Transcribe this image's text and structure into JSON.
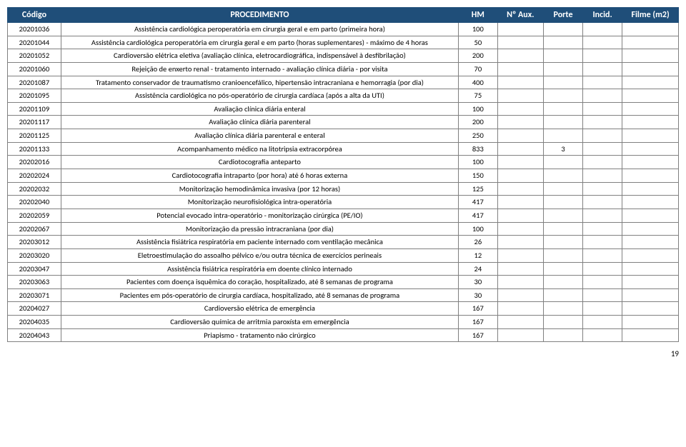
{
  "header": {
    "codigo": "Código",
    "procedimento": "PROCEDIMENTO",
    "hm": "HM",
    "naux": "Nº Aux.",
    "porte": "Porte",
    "incid": "Incid.",
    "filme": "Filme (m2)"
  },
  "rows": [
    {
      "codigo": "20201036",
      "proc": "Assistência cardiológica peroperatória em cirurgia geral e em parto (primeira hora)",
      "hm": "100",
      "naux": "",
      "porte": "",
      "incid": "",
      "filme": ""
    },
    {
      "codigo": "20201044",
      "proc": "Assistência cardiológica peroperatória em cirurgia geral e em parto (horas suplementares) - máximo de 4 horas",
      "hm": "50",
      "naux": "",
      "porte": "",
      "incid": "",
      "filme": ""
    },
    {
      "codigo": "20201052",
      "proc": "Cardioversão elétrica eletiva (avaliação clínica, eletrocardiográfica, indispensável à desfibrilação)",
      "hm": "200",
      "naux": "",
      "porte": "",
      "incid": "",
      "filme": ""
    },
    {
      "codigo": "20201060",
      "proc": "Rejeição de enxerto renal - tratamento internado - avaliação clínica diária - por visita",
      "hm": "70",
      "naux": "",
      "porte": "",
      "incid": "",
      "filme": ""
    },
    {
      "codigo": "20201087",
      "proc": "Tratamento conservador de traumatismo cranioencefálico, hipertensão intracraniana e hemorragia (por dia)",
      "hm": "400",
      "naux": "",
      "porte": "",
      "incid": "",
      "filme": ""
    },
    {
      "codigo": "20201095",
      "proc": "Assistência cardiológica no pós-operatório de cirurgia cardíaca (após a alta da UTI)",
      "hm": "75",
      "naux": "",
      "porte": "",
      "incid": "",
      "filme": ""
    },
    {
      "codigo": "20201109",
      "proc": "Avaliação clínica diária enteral",
      "hm": "100",
      "naux": "",
      "porte": "",
      "incid": "",
      "filme": ""
    },
    {
      "codigo": "20201117",
      "proc": "Avaliação clínica diária parenteral",
      "hm": "200",
      "naux": "",
      "porte": "",
      "incid": "",
      "filme": ""
    },
    {
      "codigo": "20201125",
      "proc": "Avaliação clínica diária parenteral e enteral",
      "hm": "250",
      "naux": "",
      "porte": "",
      "incid": "",
      "filme": ""
    },
    {
      "codigo": "20201133",
      "proc": "Acompanhamento médico na litotripsia extracorpórea",
      "hm": "833",
      "naux": "",
      "porte": "3",
      "incid": "",
      "filme": ""
    },
    {
      "codigo": "20202016",
      "proc": "Cardiotocografia anteparto",
      "hm": "100",
      "naux": "",
      "porte": "",
      "incid": "",
      "filme": ""
    },
    {
      "codigo": "20202024",
      "proc": "Cardiotocografia intraparto (por hora) até 6 horas externa",
      "hm": "150",
      "naux": "",
      "porte": "",
      "incid": "",
      "filme": ""
    },
    {
      "codigo": "20202032",
      "proc": "Monitorização hemodinâmica invasiva (por 12 horas)",
      "hm": "125",
      "naux": "",
      "porte": "",
      "incid": "",
      "filme": ""
    },
    {
      "codigo": "20202040",
      "proc": "Monitorização neurofisiológica intra-operatória",
      "hm": "417",
      "naux": "",
      "porte": "",
      "incid": "",
      "filme": ""
    },
    {
      "codigo": "20202059",
      "proc": "Potencial evocado intra-operatório - monitorização cirúrgica (PE/IO)",
      "hm": "417",
      "naux": "",
      "porte": "",
      "incid": "",
      "filme": ""
    },
    {
      "codigo": "20202067",
      "proc": "Monitorização da pressão intracraniana (por dia)",
      "hm": "100",
      "naux": "",
      "porte": "",
      "incid": "",
      "filme": ""
    },
    {
      "codigo": "20203012",
      "proc": "Assistência fisiátrica respiratória em paciente internado com ventilação mecânica",
      "hm": "26",
      "naux": "",
      "porte": "",
      "incid": "",
      "filme": ""
    },
    {
      "codigo": "20203020",
      "proc": "Eletroestimulação do assoalho pélvico e/ou outra técnica de exercícios perineais",
      "hm": "12",
      "naux": "",
      "porte": "",
      "incid": "",
      "filme": ""
    },
    {
      "codigo": "20203047",
      "proc": "Assistência fisiátrica respiratória em doente clínico internado",
      "hm": "24",
      "naux": "",
      "porte": "",
      "incid": "",
      "filme": ""
    },
    {
      "codigo": "20203063",
      "proc": "Pacientes com doença isquêmica do coração, hospitalizado, até 8 semanas de programa",
      "hm": "30",
      "naux": "",
      "porte": "",
      "incid": "",
      "filme": ""
    },
    {
      "codigo": "20203071",
      "proc": "Pacientes em pós-operatório de cirurgia cardíaca, hospitalizado, até 8 semanas de programa",
      "hm": "30",
      "naux": "",
      "porte": "",
      "incid": "",
      "filme": ""
    },
    {
      "codigo": "20204027",
      "proc": "Cardioversão elétrica de emergência",
      "hm": "167",
      "naux": "",
      "porte": "",
      "incid": "",
      "filme": ""
    },
    {
      "codigo": "20204035",
      "proc": "Cardioversão química de arritmia paroxísta em emergência",
      "hm": "167",
      "naux": "",
      "porte": "",
      "incid": "",
      "filme": ""
    },
    {
      "codigo": "20204043",
      "proc": "Priapismo - tratamento não cirúrgico",
      "hm": "167",
      "naux": "",
      "porte": "",
      "incid": "",
      "filme": ""
    }
  ],
  "page_number": "19",
  "style": {
    "header_bg": "#1f4e79",
    "header_fg": "#ffffff",
    "border_color": "#808080",
    "font_size_body": 10.5,
    "font_size_header": 12
  }
}
